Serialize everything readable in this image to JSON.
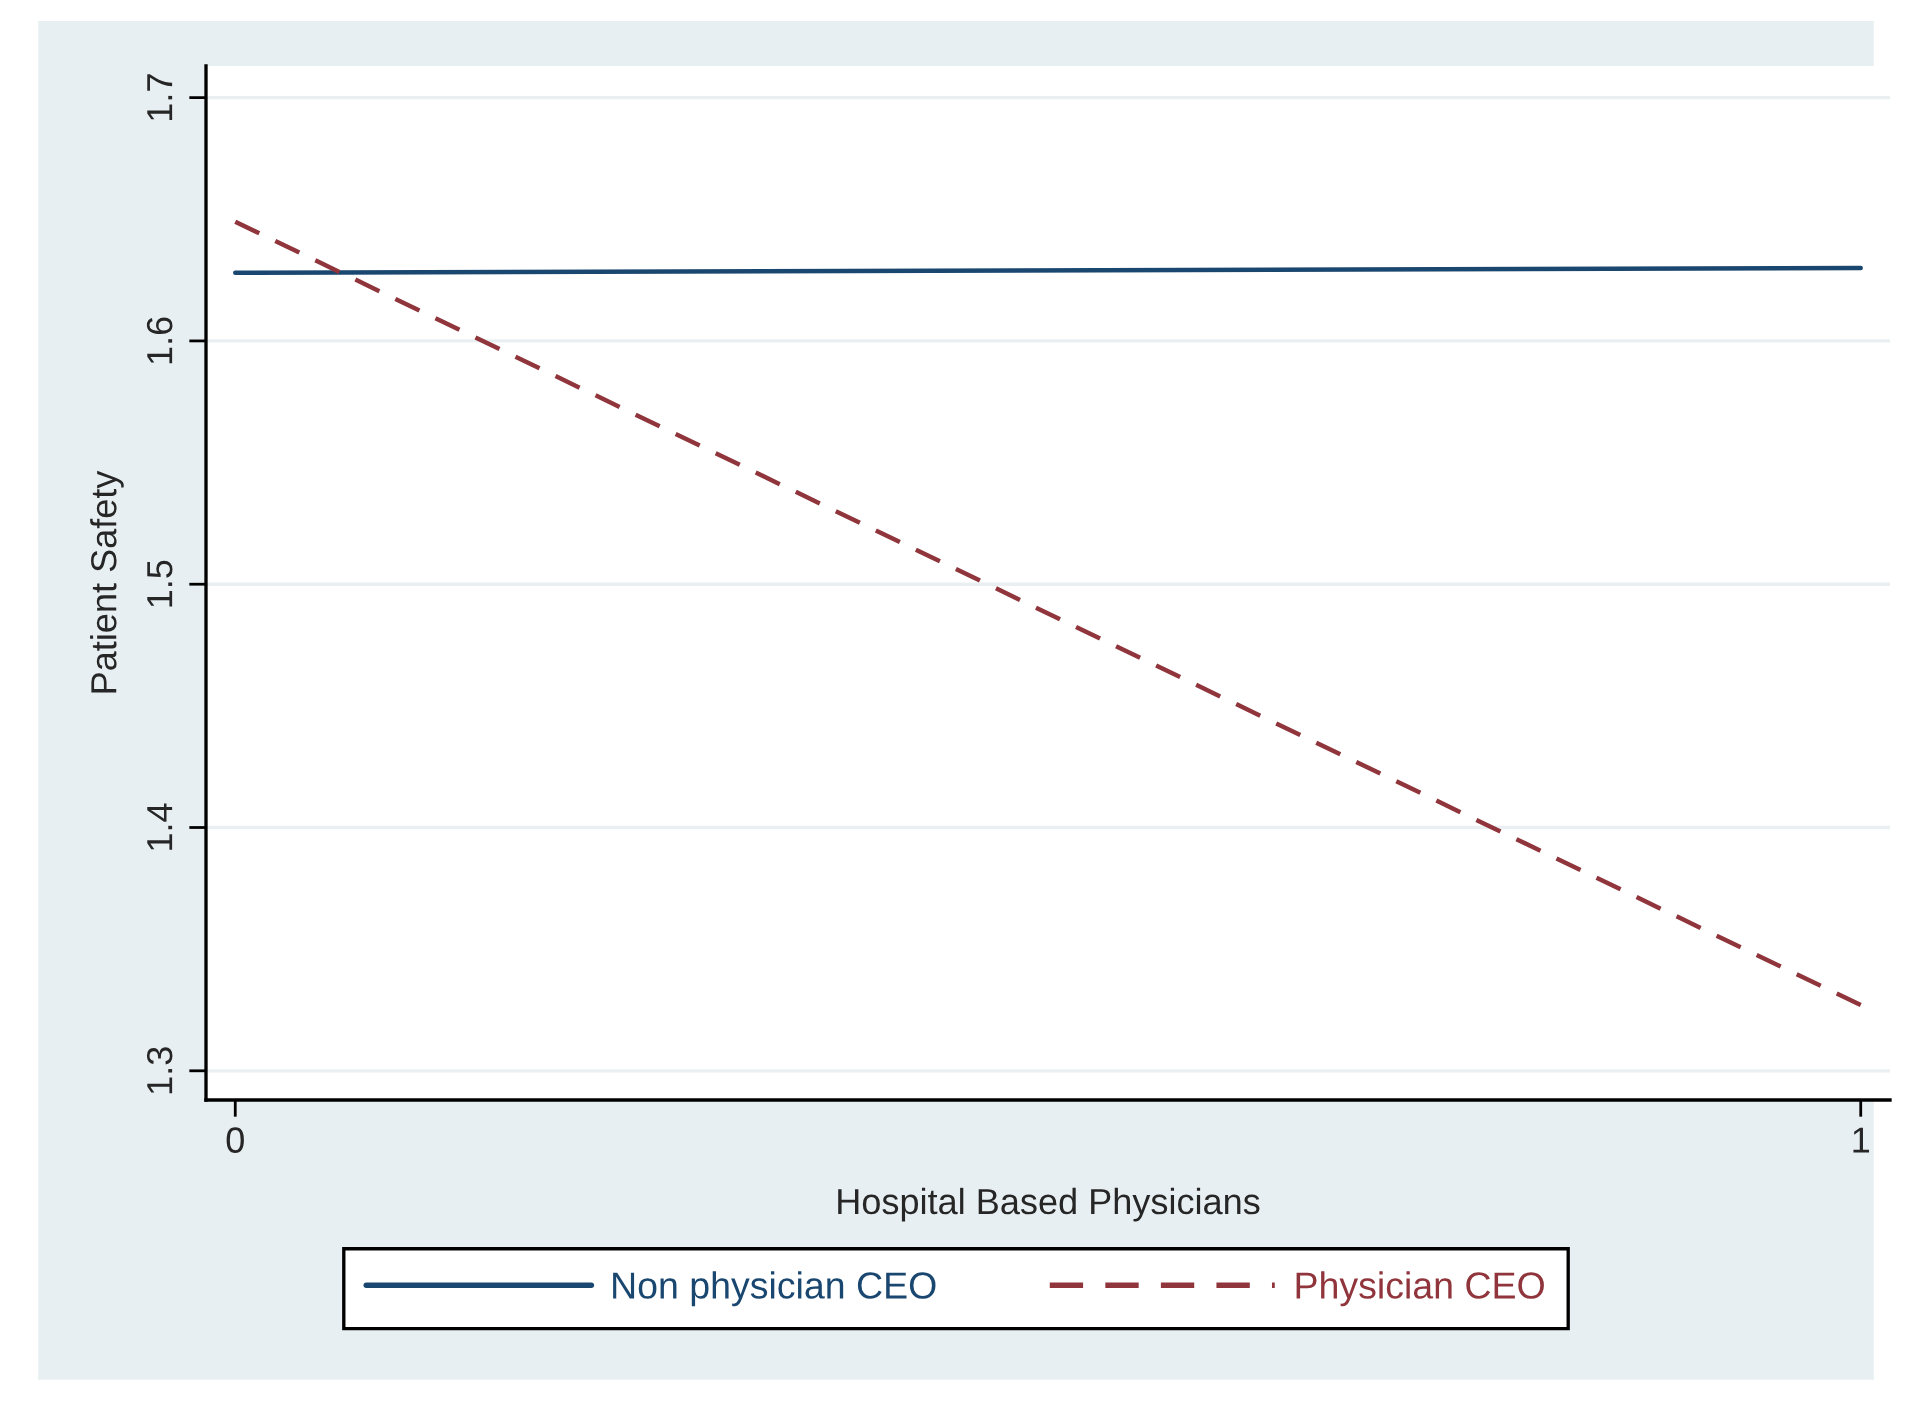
{
  "chart_data": {
    "type": "line",
    "xlabel": "Hospital Based Physicians",
    "ylabel": "Patient Safety",
    "x": [
      0,
      1
    ],
    "series": [
      {
        "name": "Non physician CEO",
        "color": "#1a476f",
        "values": [
          1.628,
          1.63
        ],
        "line_style": "solid"
      },
      {
        "name": "Physician CEO",
        "color": "#90353b",
        "values": [
          1.649,
          1.327
        ],
        "line_style": "dashed"
      }
    ],
    "xlim": [
      -0.018,
      1.018
    ],
    "xticks": [
      0,
      1
    ],
    "ylim": [
      1.288,
      1.713
    ],
    "yticks": [
      1.3,
      1.4,
      1.5,
      1.6,
      1.7
    ],
    "grid": "y",
    "legend": "bottom",
    "marker": "none"
  }
}
